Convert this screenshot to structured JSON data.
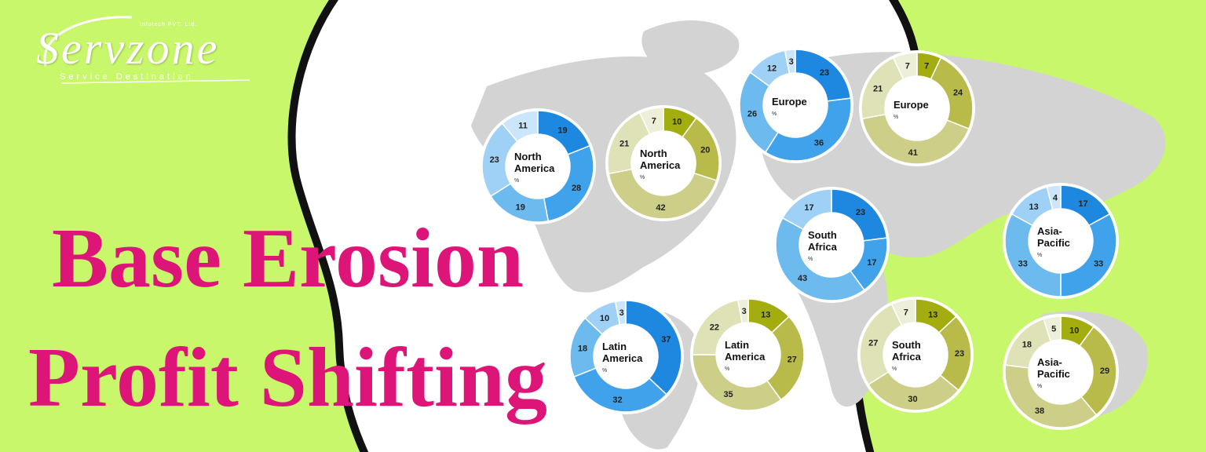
{
  "logo": {
    "name": "Servzone",
    "tagline": "Service Destination",
    "company": "Infotech PVT. Ltd."
  },
  "headline": {
    "line1": "Base Erosion",
    "line2": "Profit Shifting"
  },
  "colors": {
    "background": "#c9f76b",
    "headline": "#dd1579",
    "map": "#d3d3d3",
    "blue": [
      "#1e88e0",
      "#3fa2ea",
      "#6dbaef",
      "#9fd0f5",
      "#cbe6fa"
    ],
    "olive": [
      "#a3ad10",
      "#b8bb4a",
      "#cdcf88",
      "#dfe1b6",
      "#eeefd8"
    ]
  },
  "chart_data": [
    {
      "type": "pie",
      "title": "North America",
      "unit": "%",
      "palette": "blue",
      "values": [
        19,
        28,
        19,
        23,
        11
      ]
    },
    {
      "type": "pie",
      "title": "North America",
      "unit": "%",
      "palette": "olive",
      "values": [
        10,
        20,
        42,
        21,
        7
      ]
    },
    {
      "type": "pie",
      "title": "Europe",
      "unit": "%",
      "palette": "blue",
      "values": [
        23,
        36,
        26,
        12,
        3
      ]
    },
    {
      "type": "pie",
      "title": "Europe",
      "unit": "%",
      "palette": "olive",
      "values": [
        7,
        24,
        41,
        21,
        7
      ]
    },
    {
      "type": "pie",
      "title": "South Africa",
      "unit": "%",
      "palette": "blue",
      "values": [
        23,
        17,
        43,
        17
      ]
    },
    {
      "type": "pie",
      "title": "South Africa",
      "unit": "%",
      "palette": "olive",
      "values": [
        13,
        23,
        30,
        27,
        7
      ]
    },
    {
      "type": "pie",
      "title": "Latin America",
      "unit": "%",
      "palette": "blue",
      "values": [
        37,
        32,
        18,
        10,
        3
      ]
    },
    {
      "type": "pie",
      "title": "Latin America",
      "unit": "%",
      "palette": "olive",
      "values": [
        13,
        27,
        35,
        22,
        3
      ]
    },
    {
      "type": "pie",
      "title": "Asia-Pacific",
      "unit": "%",
      "palette": "blue",
      "values": [
        17,
        33,
        33,
        13,
        4
      ]
    },
    {
      "type": "pie",
      "title": "Asia-Pacific",
      "unit": "%",
      "palette": "olive",
      "values": [
        10,
        29,
        38,
        18,
        5
      ]
    }
  ]
}
